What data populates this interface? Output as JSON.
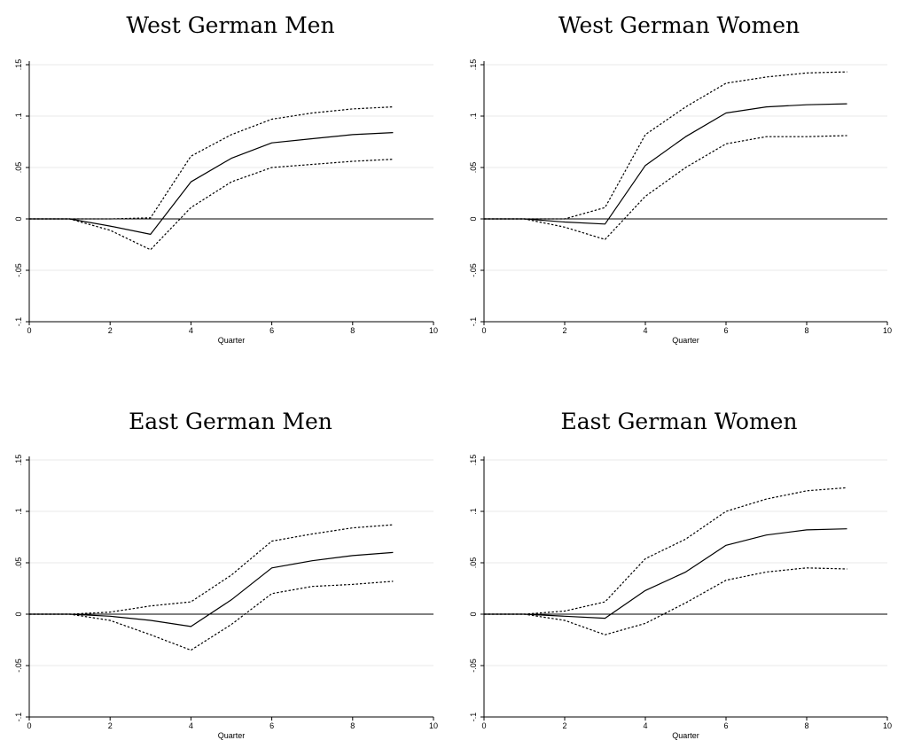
{
  "chart_data": [
    {
      "type": "line",
      "title": "West German Men",
      "xlabel": "Quarter",
      "ylabel": "",
      "xlim": [
        0,
        10
      ],
      "ylim": [
        -0.1,
        0.15
      ],
      "x_ticks": [
        0,
        2,
        4,
        6,
        8,
        10
      ],
      "x_tick_labels": [
        "0",
        "2",
        "4",
        "6",
        "8",
        "10"
      ],
      "y_ticks": [
        -0.1,
        -0.05,
        0,
        0.05,
        0.1,
        0.15
      ],
      "y_tick_labels": [
        "-.1",
        "-.05",
        "0",
        ".05",
        ".1",
        ".15"
      ],
      "grid": "horizontal",
      "zero_line": true,
      "x": [
        0,
        1,
        2,
        3,
        4,
        5,
        6,
        7,
        8,
        9
      ],
      "series": [
        {
          "role": "estimate",
          "style": "solid",
          "values": [
            0,
            0,
            -0.007,
            -0.015,
            0.036,
            0.059,
            0.074,
            0.078,
            0.082,
            0.084
          ]
        },
        {
          "role": "upper",
          "style": "dotted",
          "values": [
            0,
            0,
            0,
            0.001,
            0.061,
            0.082,
            0.097,
            0.103,
            0.107,
            0.109
          ]
        },
        {
          "role": "lower",
          "style": "dotted",
          "values": [
            0,
            0,
            -0.011,
            -0.03,
            0.011,
            0.036,
            0.05,
            0.053,
            0.056,
            0.058
          ]
        }
      ]
    },
    {
      "type": "line",
      "title": "West German Women",
      "xlabel": "Quarter",
      "ylabel": "",
      "xlim": [
        0,
        10
      ],
      "ylim": [
        -0.1,
        0.15
      ],
      "x_ticks": [
        0,
        2,
        4,
        6,
        8,
        10
      ],
      "x_tick_labels": [
        "0",
        "2",
        "4",
        "6",
        "8",
        "10"
      ],
      "y_ticks": [
        -0.1,
        -0.05,
        0,
        0.05,
        0.1,
        0.15
      ],
      "y_tick_labels": [
        "-.1",
        "-.05",
        "0",
        ".05",
        ".1",
        ".15"
      ],
      "grid": "horizontal",
      "zero_line": true,
      "x": [
        0,
        1,
        2,
        3,
        4,
        5,
        6,
        7,
        8,
        9
      ],
      "series": [
        {
          "role": "estimate",
          "style": "solid",
          "values": [
            0,
            0,
            -0.003,
            -0.005,
            0.052,
            0.08,
            0.103,
            0.109,
            0.111,
            0.112
          ]
        },
        {
          "role": "upper",
          "style": "dotted",
          "values": [
            0,
            0,
            0,
            0.011,
            0.082,
            0.109,
            0.132,
            0.138,
            0.142,
            0.143
          ]
        },
        {
          "role": "lower",
          "style": "dotted",
          "values": [
            0,
            0,
            -0.008,
            -0.02,
            0.022,
            0.05,
            0.073,
            0.08,
            0.08,
            0.081
          ]
        }
      ]
    },
    {
      "type": "line",
      "title": "East German Men",
      "xlabel": "Quarter",
      "ylabel": "",
      "xlim": [
        0,
        10
      ],
      "ylim": [
        -0.1,
        0.15
      ],
      "x_ticks": [
        0,
        2,
        4,
        6,
        8,
        10
      ],
      "x_tick_labels": [
        "0",
        "2",
        "4",
        "6",
        "8",
        "10"
      ],
      "y_ticks": [
        -0.1,
        -0.05,
        0,
        0.05,
        0.1,
        0.15
      ],
      "y_tick_labels": [
        "-.1",
        "-.05",
        "0",
        ".05",
        ".1",
        ".15"
      ],
      "grid": "horizontal",
      "zero_line": true,
      "x": [
        0,
        1,
        2,
        3,
        4,
        5,
        6,
        7,
        8,
        9
      ],
      "series": [
        {
          "role": "estimate",
          "style": "solid",
          "values": [
            0,
            0,
            -0.002,
            -0.006,
            -0.012,
            0.014,
            0.045,
            0.052,
            0.057,
            0.06
          ]
        },
        {
          "role": "upper",
          "style": "dotted",
          "values": [
            0,
            0,
            0.002,
            0.008,
            0.012,
            0.038,
            0.071,
            0.078,
            0.084,
            0.087
          ]
        },
        {
          "role": "lower",
          "style": "dotted",
          "values": [
            0,
            0,
            -0.006,
            -0.02,
            -0.035,
            -0.01,
            0.02,
            0.027,
            0.029,
            0.032
          ]
        }
      ]
    },
    {
      "type": "line",
      "title": "East German Women",
      "xlabel": "Quarter",
      "ylabel": "",
      "xlim": [
        0,
        10
      ],
      "ylim": [
        -0.1,
        0.15
      ],
      "x_ticks": [
        0,
        2,
        4,
        6,
        8,
        10
      ],
      "x_tick_labels": [
        "0",
        "2",
        "4",
        "6",
        "8",
        "10"
      ],
      "y_ticks": [
        -0.1,
        -0.05,
        0,
        0.05,
        0.1,
        0.15
      ],
      "y_tick_labels": [
        "-.1",
        "-.05",
        "0",
        ".05",
        ".1",
        ".15"
      ],
      "grid": "horizontal",
      "zero_line": true,
      "x": [
        0,
        1,
        2,
        3,
        4,
        5,
        6,
        7,
        8,
        9
      ],
      "series": [
        {
          "role": "estimate",
          "style": "solid",
          "values": [
            0,
            0,
            -0.002,
            -0.004,
            0.023,
            0.041,
            0.067,
            0.077,
            0.082,
            0.083
          ]
        },
        {
          "role": "upper",
          "style": "dotted",
          "values": [
            0,
            0,
            0.003,
            0.012,
            0.054,
            0.073,
            0.1,
            0.112,
            0.12,
            0.123
          ]
        },
        {
          "role": "lower",
          "style": "dotted",
          "values": [
            0,
            0,
            -0.006,
            -0.02,
            -0.009,
            0.011,
            0.033,
            0.041,
            0.045,
            0.044
          ]
        }
      ]
    }
  ]
}
